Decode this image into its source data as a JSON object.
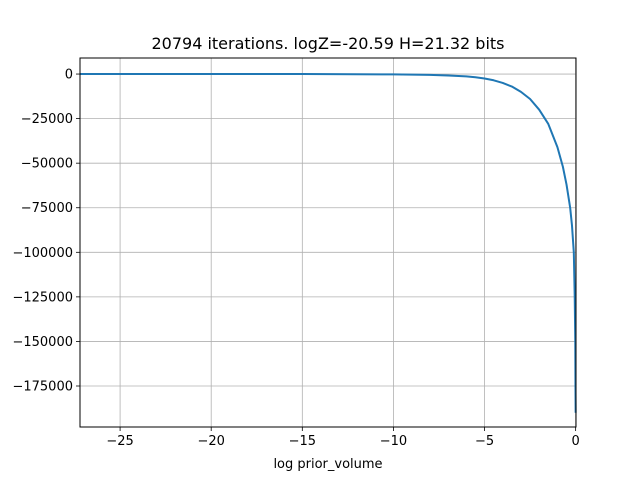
{
  "chart_data": {
    "type": "line",
    "title": "20794 iterations. logZ=-20.59 H=21.32 bits",
    "xlabel": "log prior_volume",
    "ylabel": "",
    "xlim": [
      -27.2,
      0.02
    ],
    "ylim": [
      -198000,
      9000
    ],
    "grid": true,
    "legend": "none",
    "x_ticks": [
      -25,
      -20,
      -15,
      -10,
      -5,
      0
    ],
    "x_tick_labels": [
      "−25",
      "−20",
      "−15",
      "−10",
      "−5",
      "0"
    ],
    "y_ticks": [
      0,
      -25000,
      -50000,
      -75000,
      -100000,
      -125000,
      -150000,
      -175000
    ],
    "y_tick_labels": [
      "0",
      "−25000",
      "−50000",
      "−75000",
      "−100000",
      "−125000",
      "−150000",
      "−175000"
    ],
    "series": [
      {
        "color": "#1f77b4",
        "x": [
          -27.2,
          -25,
          -20,
          -15,
          -10,
          -8,
          -7,
          -6,
          -5.5,
          -5,
          -4.5,
          -4,
          -3.5,
          -3,
          -2.5,
          -2,
          -1.5,
          -1,
          -0.7,
          -0.5,
          -0.3,
          -0.2,
          -0.1,
          -0.05,
          -0.02,
          -0.01,
          0
        ],
        "y": [
          0,
          0,
          0,
          0,
          -200,
          -500,
          -800,
          -1300,
          -1800,
          -2500,
          -3500,
          -5000,
          -7000,
          -10000,
          -14000,
          -20000,
          -28000,
          -41000,
          -52000,
          -62000,
          -75000,
          -85000,
          -100000,
          -125000,
          -150000,
          -175000,
          -190000
        ]
      }
    ]
  }
}
